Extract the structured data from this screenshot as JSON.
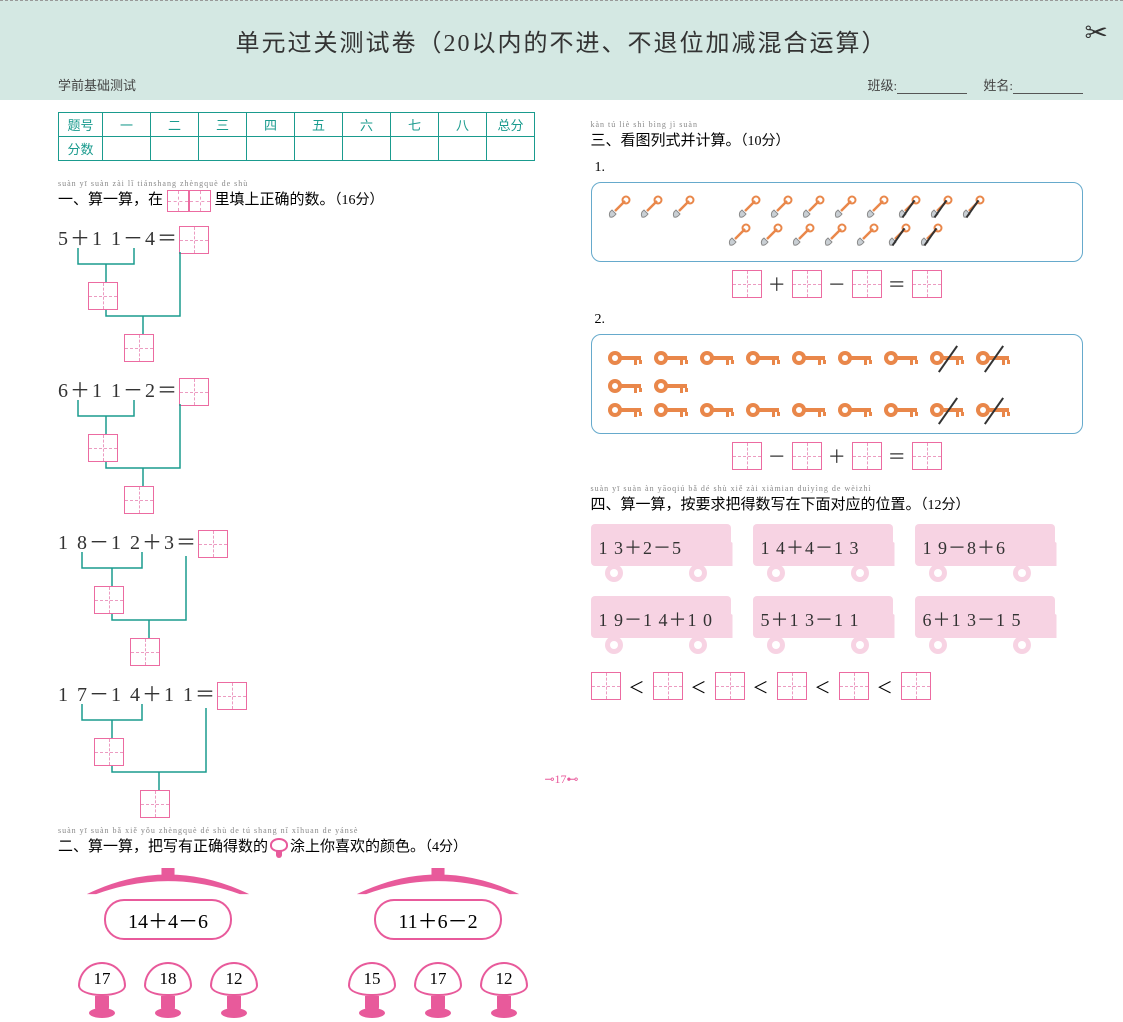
{
  "header": {
    "title": "单元过关测试卷（20以内的不进、不退位加减混合运算）",
    "subtitle": "学前基础测试",
    "class_label": "班级:",
    "name_label": "姓名:"
  },
  "score_table": {
    "row_labels": [
      "题号",
      "分数"
    ],
    "cols": [
      "一",
      "二",
      "三",
      "四",
      "五",
      "六",
      "七",
      "八",
      "总分"
    ]
  },
  "q1": {
    "pinyin": "suàn yī suàn     zài            lǐ tiánshang zhèngquè de shù",
    "label_a": "一、算一算，在",
    "label_b": "里填上正确的数。",
    "points": "（16分）",
    "items": [
      "5＋1 1－4＝",
      "6＋1 1－2＝",
      "1 8－1 2＋3＝",
      "1 7－1 4＋1 1＝"
    ]
  },
  "q2": {
    "pinyin": "suàn yī suàn   bǎ xiě yǒu zhèngquè dé shù de        tú shang nǐ xǐhuan de yánsè",
    "label_a": "二、算一算，把写有正确得数的",
    "label_b": "涂上你喜欢的颜色。",
    "points": "（4分）",
    "houses": [
      {
        "eq": "14＋4－6",
        "opts": [
          "17",
          "18",
          "12"
        ]
      },
      {
        "eq": "11＋6－2",
        "opts": [
          "15",
          "17",
          "12"
        ]
      }
    ]
  },
  "q3": {
    "pinyin": "kàn tú liè shì bìng jì suàn",
    "label": "三、看图列式并计算。",
    "points": "（10分）",
    "p1": {
      "row1": {
        "normal": 3,
        "gap": true,
        "normal2": 5,
        "struck": 3
      },
      "row2": {
        "normal": 5,
        "struck": 2
      },
      "ops": [
        "＋",
        "－",
        "＝"
      ]
    },
    "p2": {
      "row1": {
        "normal": 7,
        "struck": 2,
        "gap": true,
        "normal2": 2
      },
      "row2": {
        "normal": 7,
        "struck": 2
      },
      "ops": [
        "－",
        "＋",
        "＝"
      ]
    }
  },
  "q4": {
    "pinyin": "suàn yī suàn   àn yāoqiú bǎ dé shù xiě zài xiàmian duìyìng de wèizhì",
    "label": "四、算一算，按要求把得数写在下面对应的位置。",
    "points": "（12分）",
    "trucks": [
      "1 3＋2－5",
      "1 4＋4－1 3",
      "1 9－8＋6",
      "1 9－1 4＋1 0",
      "5＋1 3－1 1",
      "6＋1 3－1 5"
    ],
    "cmp_sym": "＜"
  },
  "page_number": "17",
  "colors": {
    "teal": "#1a9b8e",
    "pink": "#e85a9b",
    "pink_light": "#f7d3e3",
    "banner": "#d4e8e3",
    "shovel_blade": "#c9cfd4",
    "shovel_handle": "#e9874a",
    "key": "#e9874a"
  }
}
